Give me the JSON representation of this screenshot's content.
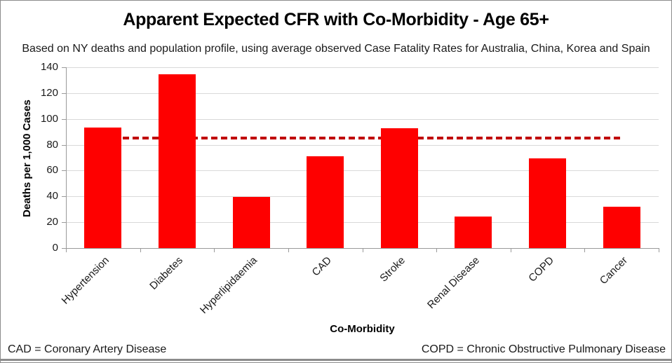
{
  "chart_data": {
    "type": "bar",
    "title": "Apparent Expected CFR with Co-Morbidity - Age 65+",
    "subtitle": "Based on NY deaths and population profile, using average observed Case Fatality Rates for Australia, China, Korea and Spain",
    "xlabel": "Co-Morbidity",
    "ylabel": "Deaths per 1,000 Cases",
    "categories": [
      "Hypertension",
      "Diabetes",
      "Hyperlipidaemia",
      "CAD",
      "Stroke",
      "Renal Disease",
      "COPD",
      "Cancer"
    ],
    "values": [
      93.5,
      134.5,
      39.5,
      71,
      93,
      24.5,
      69.5,
      32
    ],
    "reference_line": {
      "value": 85,
      "style": "dashed"
    },
    "ylim": [
      0,
      140
    ],
    "ytick_step": 20,
    "grid": true,
    "legend": "none",
    "bar_color": "#fe0000",
    "reference_line_color": "#c00000",
    "gridline_color": "#d9d9d9"
  },
  "footnotes": {
    "left": "CAD = Coronary Artery Disease",
    "right": "COPD = Chronic Obstructive Pulmonary Disease"
  }
}
